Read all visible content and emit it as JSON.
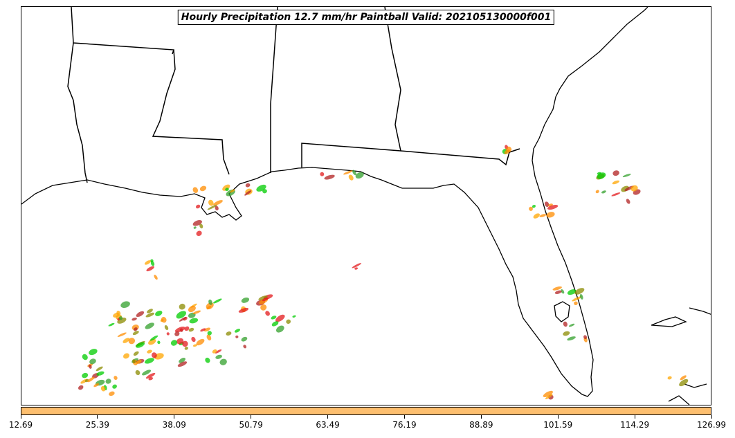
{
  "title": "Hourly Precipitation 12.7 mm/hr Paintball Valid: 202105130000f001",
  "colorbar": {
    "color": "#fdbf6f",
    "min": 12.69,
    "max": 126.99,
    "ticks": [
      "12.69",
      "25.39",
      "38.09",
      "50.79",
      "63.49",
      "76.19",
      "88.89",
      "101.59",
      "114.29",
      "126.99"
    ]
  },
  "paintball_colors": [
    "#00cc00",
    "#ff8c00",
    "#e31a1c",
    "#8b8b00",
    "#b22222",
    "#33a02c",
    "#ffa500"
  ],
  "map_features": [
    "state-borders",
    "coastlines"
  ]
}
